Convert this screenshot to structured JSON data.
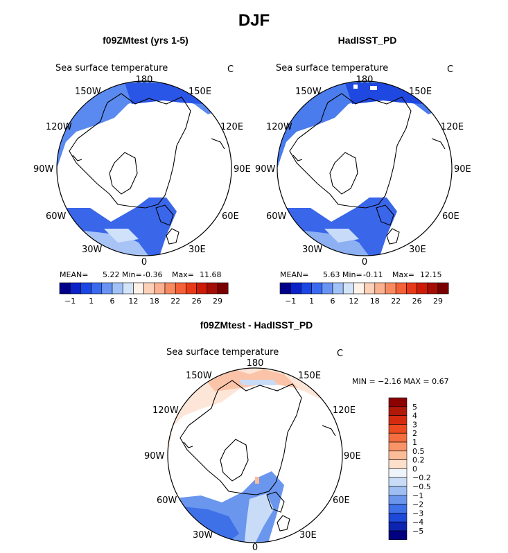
{
  "figure": {
    "title": "DJF",
    "panels": [
      {
        "title": "f09ZMtest (yrs 1-5)",
        "field": "Sea surface temperature",
        "units": "C",
        "stats": {
          "mean_label": "MEAN=",
          "mean": "5.22",
          "min_label": "Min=",
          "min": "-0.36",
          "max_label": "Max=",
          "max": "11.68"
        }
      },
      {
        "title": "HadISST_PD",
        "field": "Sea surface temperature",
        "units": "C",
        "stats": {
          "mean_label": "MEAN=",
          "mean": "5.63",
          "min_label": "Min=",
          "min": "-0.11",
          "max_label": "Max=",
          "max": "12.15"
        }
      },
      {
        "title": "f09ZMtest - HadISST_PD",
        "field": "Sea surface temperature",
        "units": "C",
        "stats_text": "MIN =  −2.16 MAX =    0.67"
      }
    ],
    "lon_labels": [
      "180",
      "150E",
      "120E",
      "90E",
      "60E",
      "30E",
      "0",
      "30W",
      "60W",
      "90W",
      "120W",
      "150W"
    ]
  },
  "chart_data": [
    {
      "type": "heatmap",
      "title": "f09ZMtest (yrs 1-5)",
      "variable": "Sea surface temperature",
      "units": "C",
      "projection": "north polar stereographic",
      "mean": 5.22,
      "min": -0.36,
      "max": 11.68,
      "colorbar": {
        "tick_labels": [
          "−1",
          "1",
          "6",
          "12",
          "18",
          "22",
          "26",
          "29"
        ],
        "colors": [
          "#00008b",
          "#0a22c8",
          "#1a46e6",
          "#3a6aee",
          "#6a94f4",
          "#a0c2f8",
          "#d2e4fa",
          "#fff2e8",
          "#fdd0b8",
          "#fbb090",
          "#f88a60",
          "#f46038",
          "#e83a18",
          "#cc1c08",
          "#a50e04",
          "#7a0000"
        ]
      }
    },
    {
      "type": "heatmap",
      "title": "HadISST_PD",
      "variable": "Sea surface temperature",
      "units": "C",
      "projection": "north polar stereographic",
      "mean": 5.63,
      "min": -0.11,
      "max": 12.15,
      "colorbar": {
        "tick_labels": [
          "−1",
          "1",
          "6",
          "12",
          "18",
          "22",
          "26",
          "29"
        ],
        "colors": [
          "#00008b",
          "#0a22c8",
          "#1a46e6",
          "#3a6aee",
          "#6a94f4",
          "#a0c2f8",
          "#d2e4fa",
          "#fff2e8",
          "#fdd0b8",
          "#fbb090",
          "#f88a60",
          "#f46038",
          "#e83a18",
          "#cc1c08",
          "#a50e04",
          "#7a0000"
        ]
      }
    },
    {
      "type": "heatmap",
      "title": "f09ZMtest - HadISST_PD",
      "variable": "Sea surface temperature",
      "units": "C",
      "projection": "north polar stereographic",
      "min": -2.16,
      "max": 0.67,
      "colorbar": {
        "tick_labels": [
          "5",
          "4",
          "3",
          "2",
          "1",
          "0.5",
          "0.2",
          "0",
          "−0.2",
          "−0.5",
          "−1",
          "−2",
          "−3",
          "−4",
          "−5"
        ],
        "colors": [
          "#8b0000",
          "#b01808",
          "#d42a10",
          "#ec4a20",
          "#f46e40",
          "#f89468",
          "#fbbc98",
          "#fde0cc",
          "#eef4fa",
          "#c8dcf8",
          "#9ebef4",
          "#6a96ee",
          "#3e70e8",
          "#1e48d8",
          "#0c24b0",
          "#000080"
        ]
      }
    }
  ]
}
